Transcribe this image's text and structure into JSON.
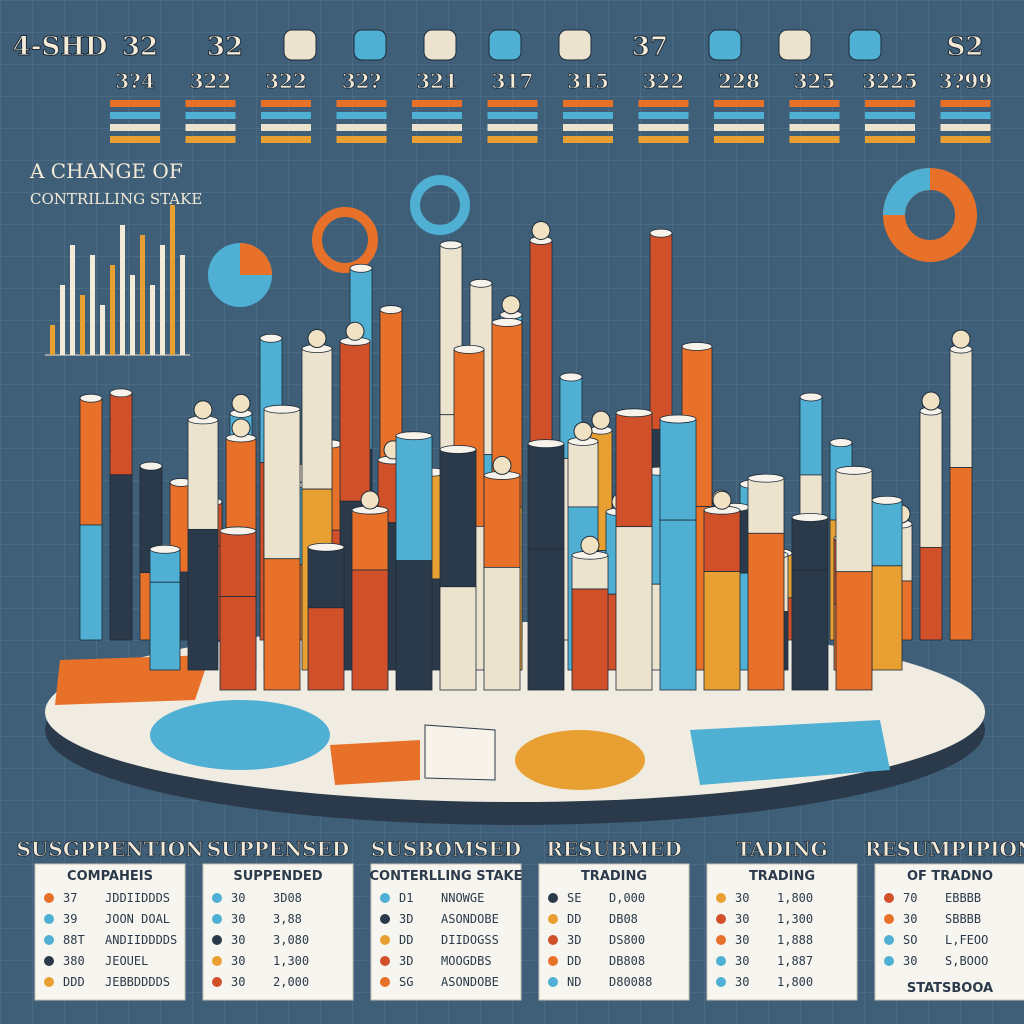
{
  "header": {
    "top_labels": [
      "4-SHD",
      "32",
      "32",
      "37",
      "S2"
    ],
    "numbers": [
      "3?4",
      "322",
      "322",
      "32?",
      "321",
      "317",
      "315",
      "322",
      "228",
      "325",
      "3225",
      "3?99"
    ]
  },
  "title": [
    "A CHANGE OF",
    "CONTRILLING STAKE"
  ],
  "panels": [
    {
      "title": "SUSGPPENTION",
      "subtitle": "COMPAHEIS",
      "rows": [
        [
          "37",
          "JDDIIDDDS"
        ],
        [
          "39",
          "JOON DOAL"
        ],
        [
          "88T",
          "ANDIIDDDDS"
        ],
        [
          "380",
          "JEOUEL"
        ],
        [
          "DDD",
          "JEBBDDDDS"
        ]
      ]
    },
    {
      "title": "SUPPENSED",
      "subtitle": "SUPPENDED",
      "rows": [
        [
          "30",
          "3D08"
        ],
        [
          "30",
          "3,88"
        ],
        [
          "30",
          "3,080"
        ],
        [
          "30",
          "1,300"
        ],
        [
          "30",
          "2,000"
        ]
      ]
    },
    {
      "title": "SUSBOMSED",
      "subtitle": "CONTERLLING STAKE",
      "rows": [
        [
          "D1",
          "NNOWGE"
        ],
        [
          "3D",
          "ASONDOBE"
        ],
        [
          "DD",
          "DIIDOGSS"
        ],
        [
          "3D",
          "MOOGDBS"
        ],
        [
          "SG",
          "ASONDOBE"
        ]
      ]
    },
    {
      "title": "RESUBMED",
      "subtitle": "TRADING",
      "rows": [
        [
          "SE",
          "D,000"
        ],
        [
          "DD",
          "DB08"
        ],
        [
          "3D",
          "DS800"
        ],
        [
          "DD",
          "DB808"
        ],
        [
          "ND",
          "D80088"
        ]
      ]
    },
    {
      "title": "TADING",
      "subtitle": "TRADING",
      "rows": [
        [
          "30",
          "1,800"
        ],
        [
          "30",
          "1,300"
        ],
        [
          "30",
          "1,888"
        ],
        [
          "30",
          "1,887"
        ],
        [
          "30",
          "1,800"
        ]
      ]
    },
    {
      "title": "RESUMPIPION",
      "subtitle": "OF TRADNO",
      "rows": [
        [
          "70",
          "EBBBB"
        ],
        [
          "30",
          "SBBBB"
        ],
        [
          "SO",
          "L,FEOO"
        ],
        [
          "30",
          "S,BOOO"
        ]
      ],
      "footer": "STATSBOOA"
    }
  ]
}
